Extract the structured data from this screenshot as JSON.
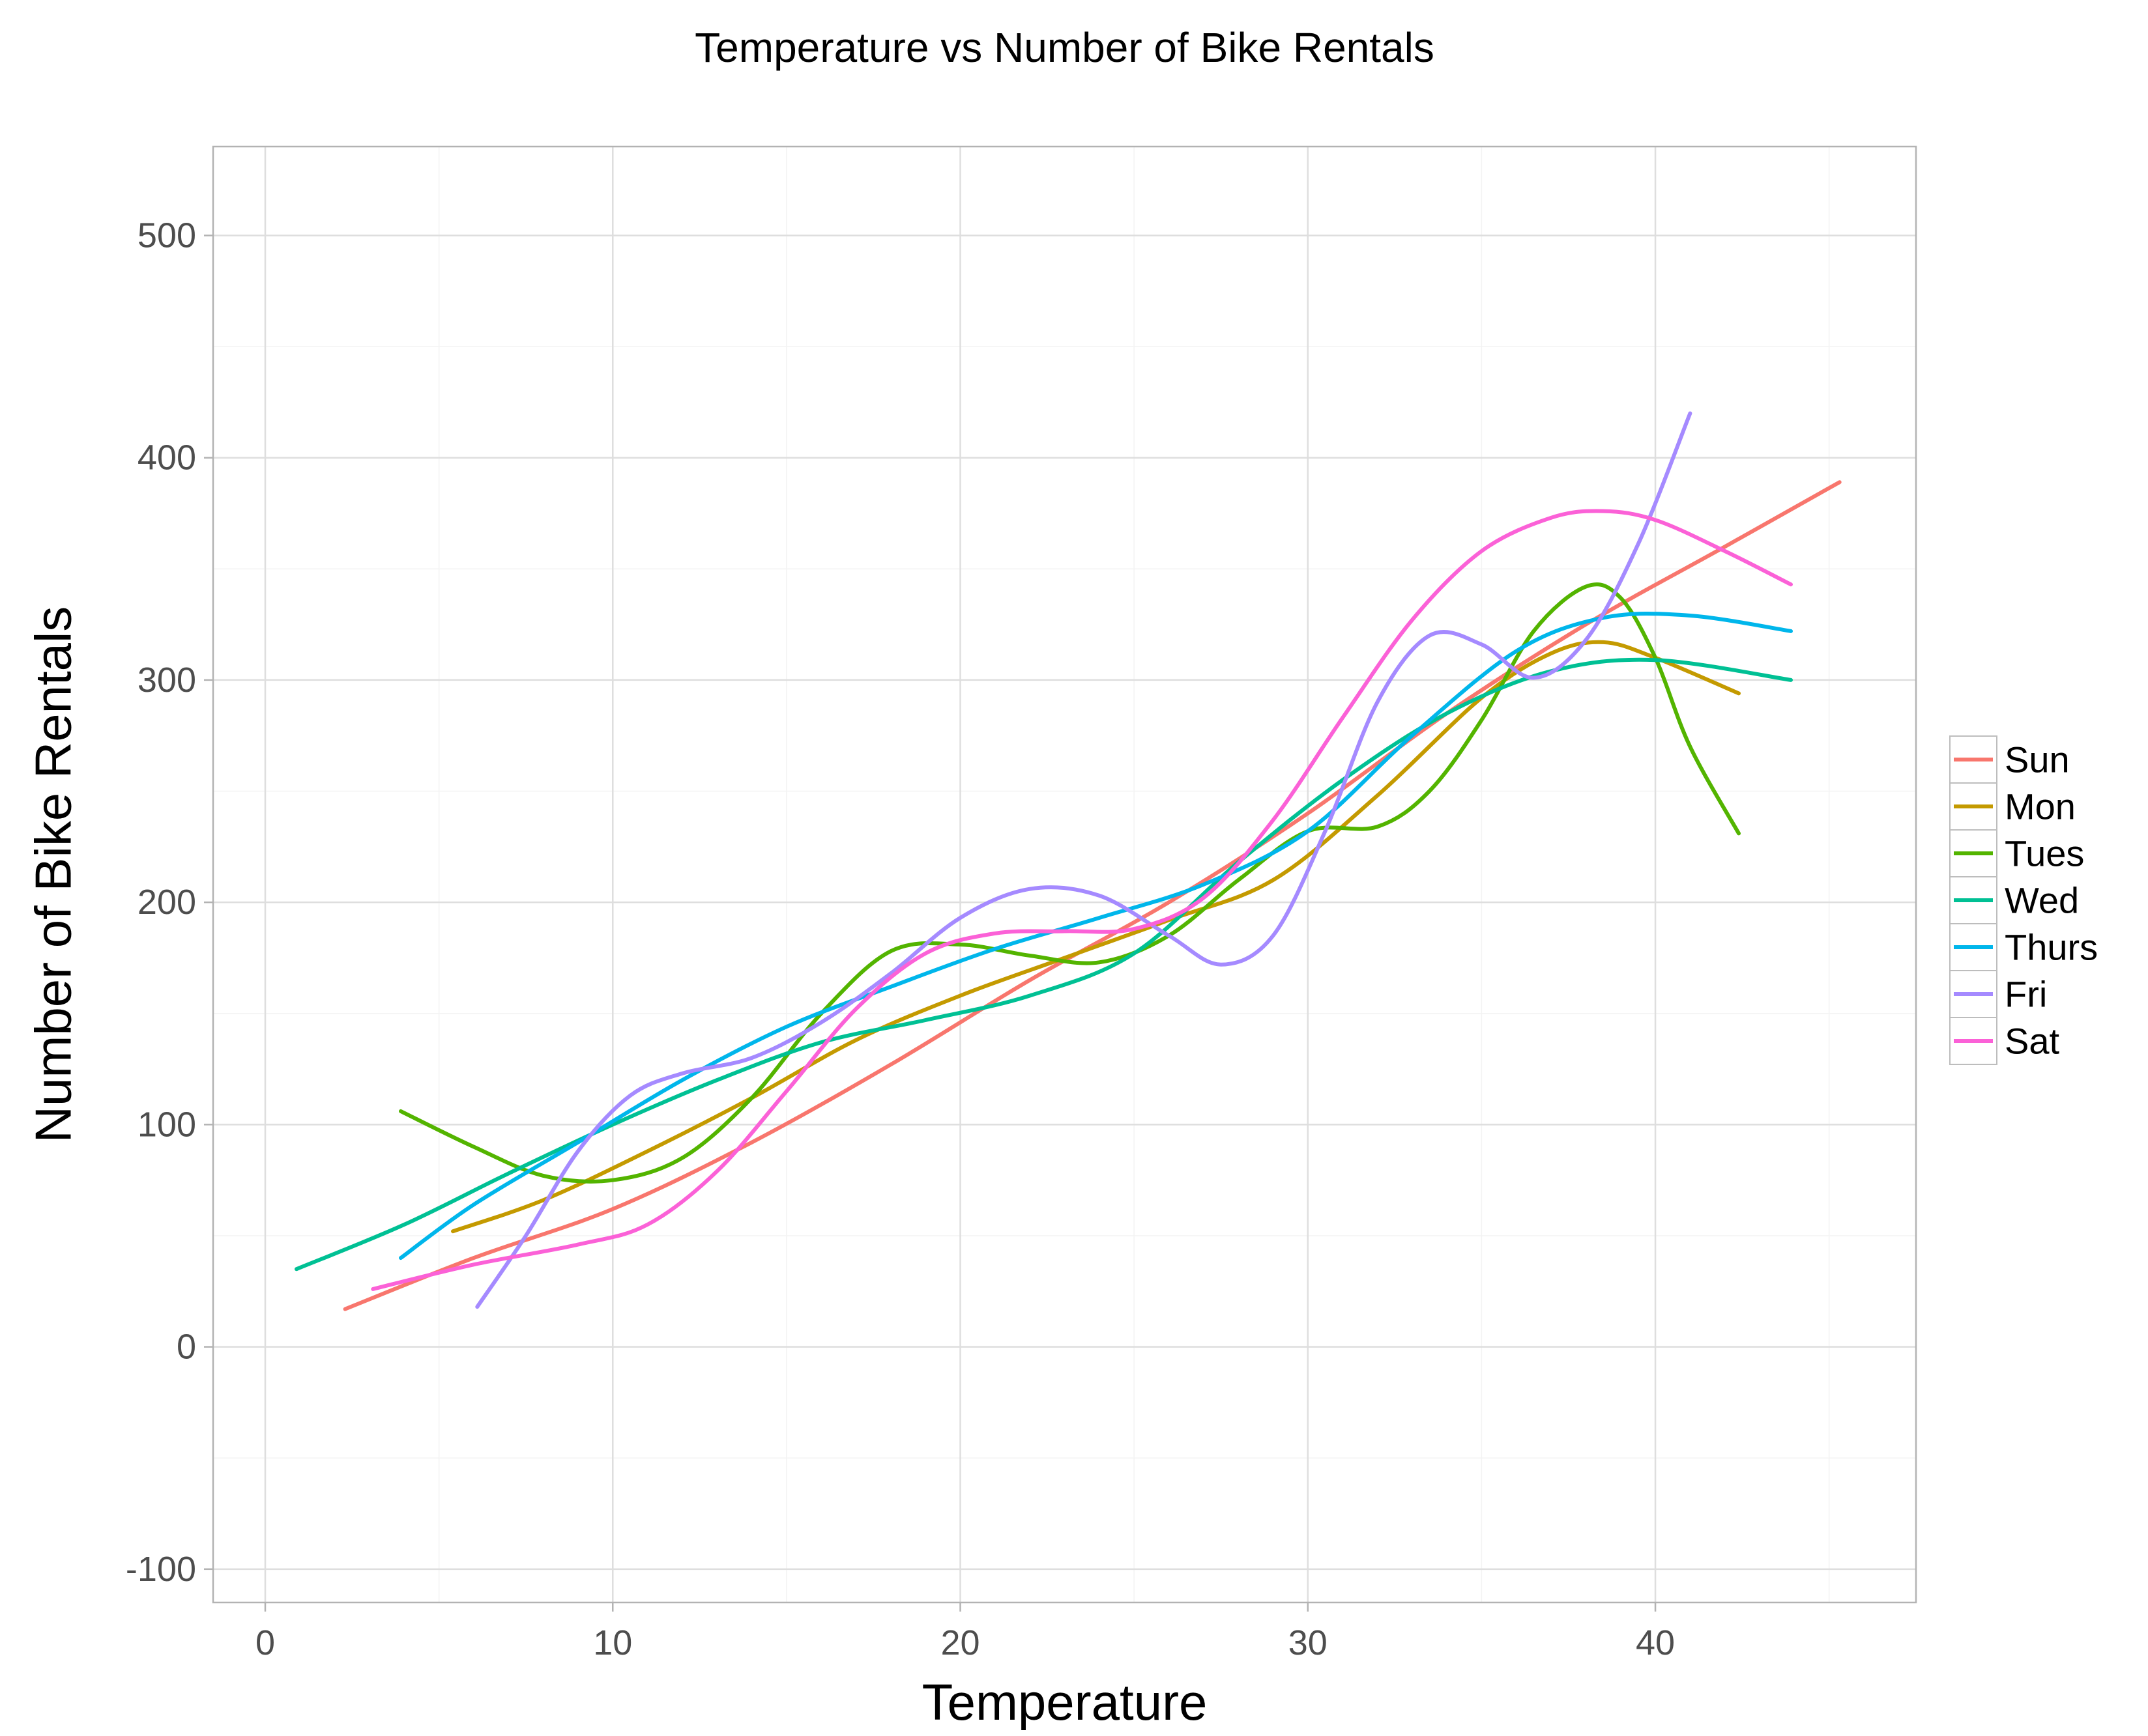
{
  "chart_data": {
    "type": "line",
    "title": "Temperature vs Number of Bike Rentals",
    "xlabel": "Temperature",
    "ylabel": "Number of Bike Rentals",
    "xlim": [
      -1.5,
      47.5
    ],
    "ylim": [
      -115,
      540
    ],
    "x_ticks": [
      0,
      10,
      20,
      30,
      40
    ],
    "y_ticks": [
      -100,
      0,
      100,
      200,
      300,
      400,
      500
    ],
    "x_tick_labels": [
      "0",
      "10",
      "20",
      "30",
      "40"
    ],
    "y_tick_labels": [
      "-100",
      "0",
      "100",
      "200",
      "300",
      "400",
      "500"
    ],
    "grid": true,
    "legend_position": "right",
    "series": [
      {
        "name": "Sun",
        "color": "#F8766D",
        "x": [
          2.3,
          6,
          10,
          14,
          18,
          22,
          26,
          30,
          34,
          38,
          42,
          45.3
        ],
        "y": [
          17,
          40,
          62,
          92,
          127,
          165,
          200,
          240,
          285,
          325,
          360,
          389
        ]
      },
      {
        "name": "Mon",
        "color": "#C49A00",
        "x": [
          5.4,
          8,
          11,
          14,
          17,
          20,
          23,
          26,
          29,
          32,
          35,
          37,
          38.5,
          40,
          42.4
        ],
        "y": [
          52,
          66,
          88,
          112,
          138,
          158,
          175,
          192,
          210,
          248,
          292,
          312,
          317,
          310,
          294
        ]
      },
      {
        "name": "Tues",
        "color": "#53B400",
        "x": [
          3.9,
          6,
          8,
          10,
          12,
          14,
          16,
          18,
          20,
          22,
          24,
          26,
          28,
          30,
          32,
          33.5,
          35,
          36.5,
          38,
          39,
          40,
          41,
          42.4
        ],
        "y": [
          106,
          90,
          77,
          75,
          85,
          112,
          150,
          178,
          181,
          176,
          173,
          185,
          210,
          232,
          234,
          250,
          282,
          322,
          342,
          337,
          310,
          270,
          231
        ]
      },
      {
        "name": "Wed",
        "color": "#00C094",
        "x": [
          0.9,
          4,
          7,
          10,
          13,
          16,
          19,
          22,
          25,
          28,
          31,
          34,
          37,
          40,
          43.9
        ],
        "y": [
          35,
          55,
          78,
          100,
          120,
          137,
          147,
          158,
          177,
          218,
          255,
          285,
          304,
          309,
          300
        ]
      },
      {
        "name": "Thurs",
        "color": "#00B6EB",
        "x": [
          3.9,
          6,
          9,
          12,
          15,
          18,
          21,
          24,
          27,
          30,
          33,
          36,
          38.5,
          41,
          43.9
        ],
        "y": [
          40,
          64,
          92,
          120,
          144,
          162,
          179,
          193,
          208,
          232,
          275,
          313,
          328,
          329,
          322
        ]
      },
      {
        "name": "Fri",
        "color": "#A58AFF",
        "x": [
          6.1,
          7.5,
          9,
          10.5,
          12,
          14,
          16,
          18,
          20,
          22,
          24,
          26,
          27.5,
          29,
          30.5,
          32,
          33.5,
          35,
          36.5,
          38,
          39.5,
          41
        ],
        "y": [
          18,
          50,
          88,
          113,
          123,
          130,
          146,
          168,
          193,
          206,
          203,
          185,
          172,
          185,
          232,
          290,
          320,
          316,
          301,
          318,
          361,
          420
        ]
      },
      {
        "name": "Sat",
        "color": "#FB61D7",
        "x": [
          3.1,
          6,
          9,
          11,
          13,
          15,
          17,
          19,
          21,
          23,
          25,
          27,
          29,
          31,
          33,
          35,
          37,
          38.5,
          40,
          42,
          43.9
        ],
        "y": [
          26,
          37,
          46,
          55,
          79,
          115,
          152,
          177,
          186,
          187,
          188,
          202,
          237,
          283,
          327,
          358,
          373,
          376,
          372,
          358,
          343
        ]
      }
    ]
  }
}
